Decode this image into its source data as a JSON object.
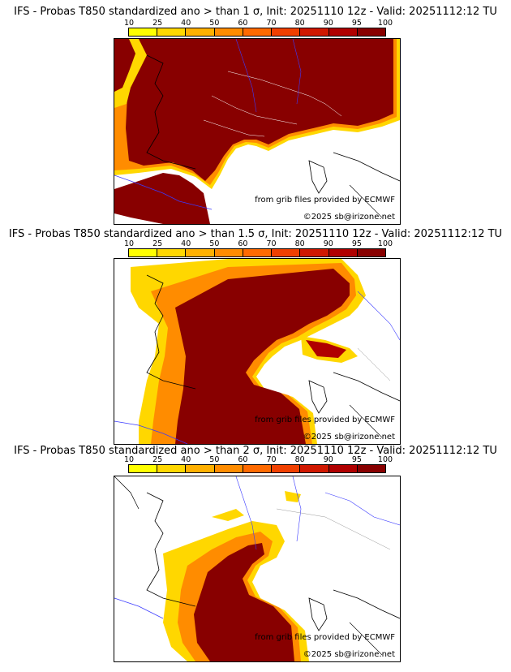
{
  "colorscale": {
    "ticks": [
      "10",
      "25",
      "40",
      "50",
      "60",
      "70",
      "80",
      "90",
      "95",
      "100"
    ],
    "colors": [
      "#ffff00",
      "#ffd700",
      "#ffb000",
      "#ff8c00",
      "#ff6a00",
      "#f04000",
      "#d01800",
      "#b00000",
      "#880000"
    ]
  },
  "panels": [
    {
      "title": "IFS - Probas T850  standardized ano > than 1 σ, Init: 20251110 12z - Valid: 20251112:12 TU",
      "credit_source": "from grib files provided by ECMWF",
      "credit_copyright": "©2025 sb@irizone.net"
    },
    {
      "title": "IFS - Probas T850  standardized ano > than 1.5 σ, Init: 20251110 12z - Valid: 20251112:12 TU",
      "credit_source": "from grib files provided by ECMWF",
      "credit_copyright": "©2025 sb@irizone.net"
    },
    {
      "title": "IFS - Probas T850  standardized ano > than 2 σ, Init: 20251110 12z - Valid: 20251112:12 TU",
      "credit_source": "from grib files provided by ECMWF",
      "credit_copyright": "©2025 sb@irizone.net"
    }
  ]
}
